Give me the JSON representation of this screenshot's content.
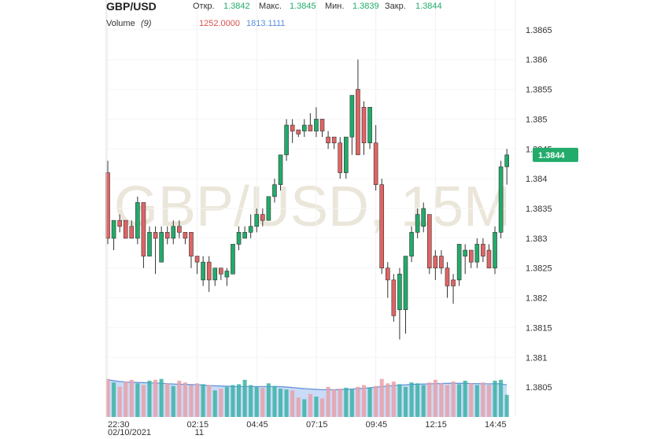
{
  "chart_data": {
    "type": "candlestick",
    "title": "GBP/USD",
    "watermark": "GBP/USD, 15M",
    "ohlc_labels": [
      "Откр.",
      "Макс.",
      "Мин.",
      "Закр."
    ],
    "volume_title": "Volume",
    "volume_period": "(9)",
    "volume_last_label": "1252.0000",
    "volume_ma_last_label": "1813.1111",
    "categories": [
      "22:30",
      null,
      null,
      null,
      null,
      null,
      null,
      null,
      null,
      null,
      null,
      null,
      null,
      null,
      null,
      "02:15",
      null,
      null,
      null,
      null,
      null,
      null,
      null,
      null,
      null,
      "04:45",
      null,
      null,
      null,
      null,
      null,
      null,
      null,
      null,
      null,
      "07:15",
      null,
      null,
      null,
      null,
      null,
      null,
      null,
      null,
      null,
      "09:45",
      null,
      null,
      null,
      null,
      null,
      null,
      null,
      null,
      null,
      "12:15",
      null,
      null,
      null,
      null,
      null,
      null,
      null,
      null,
      null,
      "14:45",
      null,
      null
    ],
    "date_labels": [
      "02/10/2021",
      null,
      null,
      null,
      null,
      null,
      null,
      null,
      null,
      null,
      null,
      null,
      null,
      null,
      null,
      "11",
      null,
      null,
      null,
      null,
      null,
      null,
      null,
      null,
      null,
      null,
      null,
      null,
      null,
      null,
      null,
      null,
      null,
      null,
      null,
      null,
      null,
      null,
      null,
      null,
      null,
      null,
      null,
      null,
      null,
      null,
      null,
      null,
      null,
      null,
      null,
      null,
      null,
      null,
      null,
      null,
      null,
      null,
      null,
      null,
      null,
      null,
      null,
      null,
      null,
      null,
      null,
      null
    ],
    "open": [
      1.3841,
      1.383,
      1.3833,
      1.3833,
      1.3832,
      1.383,
      1.3836,
      1.3827,
      1.3831,
      1.3826,
      1.3831,
      1.383,
      1.3832,
      1.3831,
      1.3831,
      1.3827,
      1.3823,
      1.3826,
      1.3823,
      1.3825,
      1.38235,
      1.3824,
      1.3829,
      1.383,
      1.3831,
      1.3832,
      1.3834,
      1.3833,
      1.3837,
      1.3839,
      1.3844,
      1.3849,
      1.38482,
      1.3848,
      1.3849,
      1.3848,
      1.385,
      1.3847,
      1.3847,
      1.3846,
      1.3841,
      1.3847,
      1.3855,
      1.3852,
      1.3846,
      1.3846,
      1.3839,
      1.3825,
      1.3823,
      1.3818,
      1.3818,
      1.3827,
      1.3831,
      1.3832,
      1.3834,
      1.3827,
      1.3827,
      1.3825,
      1.3823,
      1.3823,
      1.3827,
      1.3828,
      1.3826,
      1.3829,
      1.3828,
      1.3825,
      1.3831,
      1.3842
    ],
    "high": [
      1.3843,
      1.3833,
      1.3834,
      1.3833,
      1.3833,
      1.3837,
      1.3836,
      1.3832,
      1.3832,
      1.3832,
      1.3832,
      1.3833,
      1.3833,
      1.3831,
      1.3831,
      1.3827,
      1.3827,
      1.3827,
      1.3825,
      1.3825,
      1.3825,
      1.3829,
      1.3832,
      1.3832,
      1.3834,
      1.3835,
      1.3835,
      1.3837,
      1.384,
      1.3844,
      1.385,
      1.385,
      1.3848,
      1.385,
      1.3851,
      1.3852,
      1.385,
      1.3848,
      1.3847,
      1.3847,
      1.3847,
      1.3854,
      1.386,
      1.3853,
      1.3852,
      1.3849,
      1.384,
      1.3826,
      1.3824,
      1.3825,
      1.3827,
      1.3832,
      1.3835,
      1.3836,
      1.3834,
      1.3828,
      1.3828,
      1.3826,
      1.3824,
      1.3829,
      1.3829,
      1.3828,
      1.383,
      1.383,
      1.3829,
      1.3832,
      1.3843,
      1.3845
    ],
    "low": [
      1.3829,
      1.3828,
      1.3831,
      1.383,
      1.383,
      1.3829,
      1.3825,
      1.3827,
      1.3824,
      1.3826,
      1.3829,
      1.3829,
      1.383,
      1.3829,
      1.3825,
      1.3824,
      1.3822,
      1.3821,
      1.3822,
      1.3823,
      1.3822,
      1.3824,
      1.3828,
      1.383,
      1.383,
      1.3831,
      1.3832,
      1.3833,
      1.3836,
      1.3838,
      1.3843,
      1.3846,
      1.3847,
      1.3847,
      1.3848,
      1.3847,
      1.3847,
      1.3845,
      1.3845,
      1.384,
      1.384,
      1.3844,
      1.3844,
      1.3844,
      1.3845,
      1.3838,
      1.3824,
      1.382,
      1.3816,
      1.3813,
      1.3814,
      1.3826,
      1.383,
      1.3831,
      1.3824,
      1.3823,
      1.3824,
      1.382,
      1.3819,
      1.3822,
      1.3824,
      1.3825,
      1.3825,
      1.3826,
      1.3825,
      1.3824,
      1.383,
      1.3839
    ],
    "close": [
      1.383,
      1.3833,
      1.3832,
      1.383,
      1.383,
      1.3836,
      1.3827,
      1.3831,
      1.383,
      1.3831,
      1.383,
      1.3832,
      1.3831,
      1.383,
      1.3827,
      1.3826,
      1.3826,
      1.3823,
      1.3825,
      1.3824,
      1.38245,
      1.3829,
      1.3831,
      1.3831,
      1.3832,
      1.3834,
      1.3833,
      1.3837,
      1.3839,
      1.3844,
      1.3849,
      1.3848,
      1.38475,
      1.3849,
      1.3848,
      1.385,
      1.3848,
      1.3846,
      1.3846,
      1.3841,
      1.3847,
      1.3854,
      1.3844,
      1.3846,
      1.3852,
      1.3839,
      1.3825,
      1.3823,
      1.3817,
      1.3824,
      1.3827,
      1.3831,
      1.3834,
      1.3835,
      1.3825,
      1.3825,
      1.3825,
      1.3822,
      1.3822,
      1.3829,
      1.3828,
      1.3826,
      1.3829,
      1.3827,
      1.3825,
      1.3831,
      1.3842,
      1.3844
    ],
    "volume": [
      2150,
      1950,
      1700,
      2000,
      2100,
      1900,
      1800,
      2050,
      2100,
      2150,
      1900,
      1750,
      2050,
      1950,
      1800,
      1900,
      1850,
      1800,
      1500,
      1600,
      1700,
      1800,
      1850,
      2100,
      1800,
      1700,
      1650,
      1900,
      1750,
      1600,
      1550,
      1500,
      1100,
      1000,
      1300,
      1150,
      1050,
      1700,
      1550,
      1600,
      1650,
      1550,
      1700,
      1800,
      1650,
      1750,
      2150,
      1900,
      2000,
      1850,
      1700,
      1950,
      1900,
      1800,
      1950,
      2100,
      1900,
      1800,
      2000,
      1850,
      2050,
      1900,
      1800,
      1950,
      1800,
      2050,
      2100,
      1252
    ],
    "volume_ma": [
      2100,
      2050,
      2000,
      1980,
      1960,
      1950,
      1940,
      1930,
      1920,
      1900,
      1880,
      1860,
      1850,
      1840,
      1830,
      1820,
      1800,
      1780,
      1760,
      1750,
      1740,
      1730,
      1720,
      1720,
      1720,
      1720,
      1720,
      1720,
      1720,
      1710,
      1690,
      1660,
      1630,
      1600,
      1580,
      1560,
      1540,
      1540,
      1540,
      1550,
      1560,
      1580,
      1600,
      1620,
      1650,
      1680,
      1720,
      1750,
      1780,
      1800,
      1820,
      1840,
      1850,
      1860,
      1870,
      1880,
      1890,
      1900,
      1900,
      1900,
      1900,
      1890,
      1880,
      1880,
      1870,
      1880,
      1870,
      1813.1111
    ],
    "ylim": [
      1.38,
      1.387
    ],
    "yticks": [
      1.3805,
      1.381,
      1.3815,
      1.382,
      1.3825,
      1.383,
      1.3835,
      1.384,
      1.3845,
      1.385,
      1.3855,
      1.386,
      1.3865
    ],
    "volume_lim": [
      0,
      2800
    ],
    "up_color": "#22ab6a",
    "down_color": "#e06464",
    "up_volume_color": "#3bb3a4",
    "down_volume_color": "#e9a0a8",
    "volume_ma_color": "#5b8fd9"
  }
}
